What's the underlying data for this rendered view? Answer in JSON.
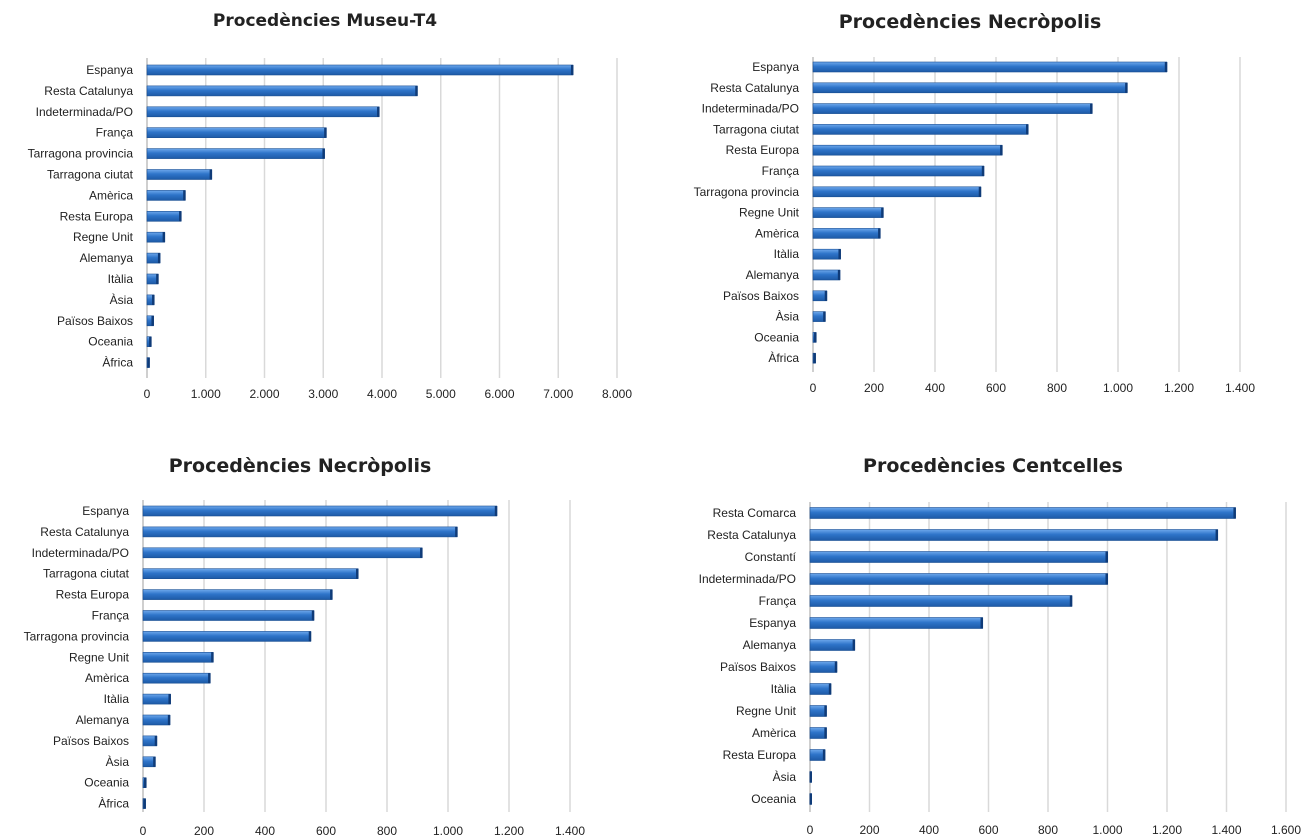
{
  "chart_data": [
    {
      "type": "bar",
      "orientation": "horizontal",
      "title": "Procedències Museu-T4",
      "categories": [
        "Espanya",
        "Resta Catalunya",
        "Indeterminada/PO",
        "França",
        "Tarragona provincia",
        "Tarragona ciutat",
        "Amèrica",
        "Resta Europa",
        "Regne Unit",
        "Alemanya",
        "Itàlia",
        "Àsia",
        "Països Baixos",
        "Oceania",
        "Àfrica"
      ],
      "values": [
        7250,
        4600,
        3950,
        3050,
        3020,
        1100,
        650,
        580,
        300,
        220,
        190,
        120,
        110,
        70,
        40
      ],
      "xlim": [
        0,
        8000
      ],
      "ticks": [
        0,
        1000,
        2000,
        3000,
        4000,
        5000,
        6000,
        7000,
        8000
      ],
      "tick_labels": [
        "0",
        "1.000",
        "2.000",
        "3.000",
        "4.000",
        "5.000",
        "6.000",
        "7.000",
        "8.000"
      ],
      "grid": true,
      "color": "#2e74c9"
    },
    {
      "type": "bar",
      "orientation": "horizontal",
      "title": "Procedències Necròpolis",
      "categories": [
        "Espanya",
        "Resta Catalunya",
        "Indeterminada/PO",
        "Tarragona ciutat",
        "Resta Europa",
        "França",
        "Tarragona provincia",
        "Regne Unit",
        "Amèrica",
        "Itàlia",
        "Alemanya",
        "Països Baixos",
        "Àsia",
        "Oceania",
        "Àfrica"
      ],
      "values": [
        1160,
        1030,
        915,
        705,
        620,
        560,
        550,
        230,
        220,
        90,
        88,
        45,
        40,
        10,
        8
      ],
      "xlim": [
        0,
        1400
      ],
      "ticks": [
        0,
        200,
        400,
        600,
        800,
        1000,
        1200,
        1400
      ],
      "tick_labels": [
        "0",
        "200",
        "400",
        "600",
        "800",
        "1.000",
        "1.200",
        "1.400"
      ],
      "grid": true,
      "color": "#2e74c9"
    },
    {
      "type": "bar",
      "orientation": "horizontal",
      "title": "Procedències Necròpolis",
      "categories": [
        "Espanya",
        "Resta Catalunya",
        "Indeterminada/PO",
        "Tarragona ciutat",
        "Resta Europa",
        "França",
        "Tarragona provincia",
        "Regne Unit",
        "Amèrica",
        "Itàlia",
        "Alemanya",
        "Països Baixos",
        "Àsia",
        "Oceania",
        "Àfrica"
      ],
      "values": [
        1160,
        1030,
        915,
        705,
        620,
        560,
        550,
        230,
        220,
        90,
        88,
        45,
        40,
        10,
        8
      ],
      "xlim": [
        0,
        1400
      ],
      "ticks": [
        0,
        200,
        400,
        600,
        800,
        1000,
        1200,
        1400
      ],
      "tick_labels": [
        "0",
        "200",
        "400",
        "600",
        "800",
        "1.000",
        "1.200",
        "1.400"
      ],
      "grid": true,
      "color": "#2e74c9"
    },
    {
      "type": "bar",
      "orientation": "horizontal",
      "title": "Procedències Centcelles",
      "categories": [
        "Resta Comarca",
        "Resta Catalunya",
        "Constantí",
        "Indeterminada/PO",
        "França",
        "Espanya",
        "Alemanya",
        "Països Baixos",
        "Itàlia",
        "Regne Unit",
        "Amèrica",
        "Resta Europa",
        "Àsia",
        "Oceania"
      ],
      "values": [
        1430,
        1370,
        1000,
        1000,
        880,
        580,
        150,
        90,
        70,
        55,
        55,
        50,
        5,
        3
      ],
      "xlim": [
        0,
        1600
      ],
      "ticks": [
        0,
        200,
        400,
        600,
        800,
        1000,
        1200,
        1400,
        1600
      ],
      "tick_labels": [
        "0",
        "200",
        "400",
        "600",
        "800",
        "1.000",
        "1.200",
        "1.400",
        "1.600"
      ],
      "grid": true,
      "color": "#2e74c9"
    }
  ]
}
